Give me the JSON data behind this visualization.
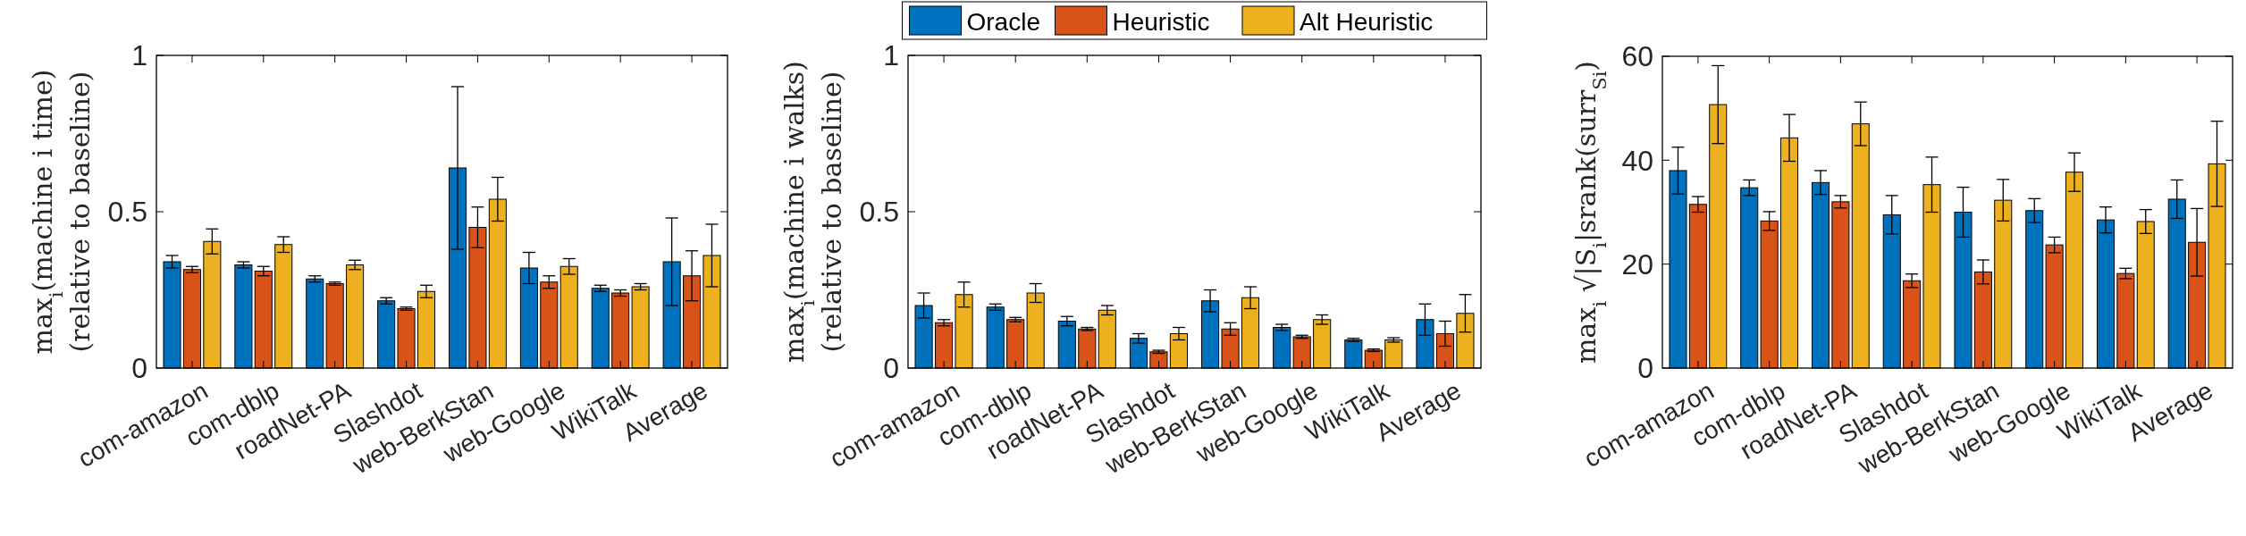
{
  "chart_data": [
    {
      "type": "bar",
      "ylabel": "max$_{i}$(machine i time)\n(relative to baseline)",
      "categories": [
        "com-amazon",
        "com-dblp",
        "roadNet-PA",
        "Slashdot",
        "web-BerkStan",
        "web-Google",
        "WikiTalk",
        "Average"
      ],
      "ylim": [
        0,
        1
      ],
      "yticks": [
        0,
        0.5,
        1
      ],
      "grid": false,
      "legend": false,
      "series": [
        {
          "color": "#0072bd",
          "values": [
            0.34,
            0.33,
            0.285,
            0.215,
            0.64,
            0.32,
            0.255,
            0.34
          ],
          "errors": [
            0.02,
            0.01,
            0.01,
            0.01,
            0.26,
            0.05,
            0.01,
            0.14
          ]
        },
        {
          "color": "#d95319",
          "values": [
            0.315,
            0.31,
            0.27,
            0.19,
            0.45,
            0.275,
            0.24,
            0.295
          ],
          "errors": [
            0.01,
            0.015,
            0.005,
            0.005,
            0.065,
            0.02,
            0.01,
            0.08
          ]
        },
        {
          "color": "#edb120",
          "values": [
            0.405,
            0.395,
            0.33,
            0.245,
            0.54,
            0.325,
            0.26,
            0.36
          ],
          "errors": [
            0.04,
            0.025,
            0.015,
            0.02,
            0.07,
            0.025,
            0.01,
            0.1
          ]
        }
      ]
    },
    {
      "type": "bar",
      "ylabel": "max$_{i}$(machine i walks)\n(relative to baseline)",
      "categories": [
        "com-amazon",
        "com-dblp",
        "roadNet-PA",
        "Slashdot",
        "web-BerkStan",
        "web-Google",
        "WikiTalk",
        "Average"
      ],
      "ylim": [
        0,
        1
      ],
      "yticks": [
        0,
        0.5,
        1
      ],
      "grid": false,
      "legend": "top",
      "series": [
        {
          "name": "Oracle",
          "color": "#0072bd",
          "values": [
            0.2,
            0.195,
            0.15,
            0.095,
            0.215,
            0.13,
            0.09,
            0.155
          ],
          "errors": [
            0.04,
            0.01,
            0.015,
            0.015,
            0.035,
            0.01,
            0.005,
            0.05
          ]
        },
        {
          "name": "Heuristic",
          "color": "#d95319",
          "values": [
            0.145,
            0.155,
            0.125,
            0.052,
            0.125,
            0.1,
            0.057,
            0.11
          ],
          "errors": [
            0.01,
            0.007,
            0.005,
            0.005,
            0.02,
            0.005,
            0.004,
            0.04
          ]
        },
        {
          "name": "Alt Heuristic",
          "color": "#edb120",
          "values": [
            0.235,
            0.24,
            0.185,
            0.11,
            0.225,
            0.155,
            0.09,
            0.175
          ],
          "errors": [
            0.04,
            0.03,
            0.015,
            0.02,
            0.035,
            0.015,
            0.007,
            0.06
          ]
        }
      ]
    },
    {
      "type": "bar",
      "ylabel": "max$_{i}$ √|S$_{i}$|srank(surr$_{Si}$)",
      "categories": [
        "com-amazon",
        "com-dblp",
        "roadNet-PA",
        "Slashdot",
        "web-BerkStan",
        "web-Google",
        "WikiTalk",
        "Average"
      ],
      "ylim": [
        0,
        60
      ],
      "yticks": [
        0,
        20,
        40,
        60
      ],
      "grid": false,
      "legend": false,
      "series": [
        {
          "color": "#0072bd",
          "values": [
            38,
            34.7,
            35.7,
            29.5,
            30,
            30.3,
            28.5,
            32.5
          ],
          "errors": [
            4.5,
            1.5,
            2.3,
            3.7,
            4.8,
            2.3,
            2.5,
            3.7
          ]
        },
        {
          "color": "#d95319",
          "values": [
            31.5,
            28.3,
            32,
            16.8,
            18.5,
            23.7,
            18.2,
            24.2
          ],
          "errors": [
            1.5,
            1.8,
            1.2,
            1.3,
            2.3,
            1.5,
            1,
            6.5
          ]
        },
        {
          "color": "#edb120",
          "values": [
            50.7,
            44.3,
            47,
            35.3,
            32.3,
            37.7,
            28.2,
            39.3
          ],
          "errors": [
            7.5,
            4.5,
            4.2,
            5.3,
            4,
            3.7,
            2.3,
            8.2
          ]
        }
      ]
    }
  ]
}
